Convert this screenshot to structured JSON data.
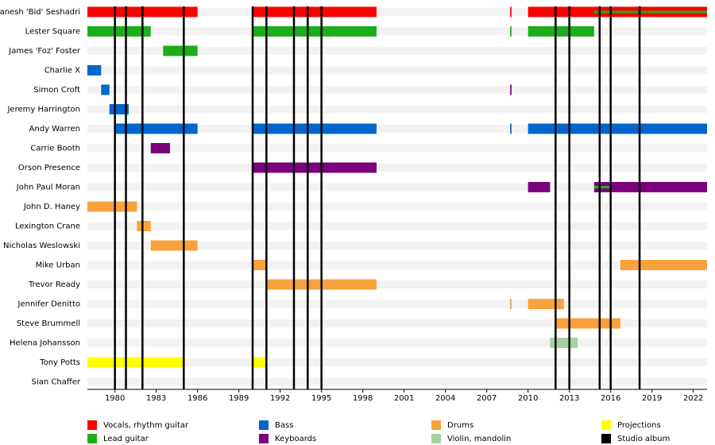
{
  "chart_data": {
    "type": "timeline",
    "categories": [
      "Ganesh 'Bid' Seshadri",
      "Lester Square",
      "James 'Foz' Foster",
      "Charlie X",
      "Simon Croft",
      "Jeremy Harrington",
      "Andy Warren",
      "Carrie Booth",
      "Orson Presence",
      "John Paul Moran",
      "John D. Haney",
      "Lexington Crane",
      "Nicholas Weslowski",
      "Mike Urban",
      "Trevor Ready",
      "Jennifer Denitto",
      "Steve Brummell",
      "Helena Johansson",
      "Tony Potts",
      "Sian Chaffer"
    ],
    "xlim": [
      1978,
      2023
    ],
    "xticks": [
      1980,
      1983,
      1986,
      1989,
      1992,
      1995,
      1998,
      2001,
      2004,
      2007,
      2010,
      2013,
      2016,
      2019,
      2022
    ],
    "series": [
      {
        "name": "Vocals, rhythm guitar",
        "color": "#ff0000",
        "values": [
          [
            [
              1978,
              1986
            ],
            [
              1990,
              1999
            ],
            [
              2008.7,
              2008.8
            ],
            [
              2010,
              2023
            ]
          ],
          null,
          null,
          null,
          null,
          null,
          null,
          null,
          null,
          null,
          null,
          null,
          null,
          null,
          null,
          null,
          null,
          null,
          null,
          null
        ]
      },
      {
        "name": "Lead guitar",
        "color": "#1aaf1a",
        "values": [
          [
            [
              2014.8,
              2023
            ]
          ],
          [
            [
              1978,
              1982.6
            ],
            [
              1990,
              1999
            ],
            [
              2008.7,
              2008.8
            ],
            [
              2010,
              2014.8
            ]
          ],
          [
            [
              1983.5,
              1986
            ]
          ],
          null,
          null,
          null,
          null,
          null,
          null,
          [
            [
              2014.8,
              2016
            ]
          ],
          null,
          null,
          null,
          null,
          null,
          null,
          null,
          null,
          null,
          null
        ]
      },
      {
        "name": "Bass",
        "color": "#0066cc",
        "values": [
          null,
          null,
          null,
          [
            [
              1978,
              1979
            ]
          ],
          [
            [
              1979,
              1979.6
            ]
          ],
          [
            [
              1979.6,
              1981
            ]
          ],
          [
            [
              1980,
              1986
            ],
            [
              1990,
              1999
            ],
            [
              2008.7,
              2008.8
            ],
            [
              2010,
              2023
            ]
          ],
          null,
          null,
          null,
          null,
          null,
          null,
          null,
          null,
          null,
          null,
          null,
          null,
          null
        ]
      },
      {
        "name": "Keyboards",
        "color": "#7b007b",
        "values": [
          null,
          null,
          null,
          null,
          [
            [
              2008.7,
              2008.8
            ]
          ],
          null,
          null,
          [
            [
              1982.6,
              1984
            ]
          ],
          [
            [
              1990,
              1999
            ]
          ],
          [
            [
              2010,
              2011.6
            ],
            [
              2014.8,
              2023
            ]
          ],
          null,
          null,
          null,
          null,
          null,
          null,
          null,
          null,
          null,
          null
        ]
      },
      {
        "name": "Drums",
        "color": "#f9a23c",
        "values": [
          null,
          null,
          null,
          null,
          null,
          null,
          null,
          null,
          null,
          null,
          [
            [
              1978,
              1981.6
            ]
          ],
          [
            [
              1981.6,
              1982.6
            ]
          ],
          [
            [
              1982.6,
              1986
            ]
          ],
          [
            [
              1990,
              1991
            ],
            [
              2016.7,
              2023
            ]
          ],
          [
            [
              1991,
              1999
            ]
          ],
          [
            [
              2008.7,
              2008.8
            ],
            [
              2010,
              2012.6
            ]
          ],
          [
            [
              2012,
              2016.7
            ]
          ],
          null,
          null,
          null
        ]
      },
      {
        "name": "Violin, mandolin",
        "color": "#a3d1a3",
        "values": [
          null,
          null,
          null,
          null,
          null,
          null,
          null,
          null,
          null,
          null,
          null,
          null,
          null,
          null,
          null,
          null,
          null,
          [
            [
              2011.6,
              2013.6
            ]
          ],
          null,
          null
        ]
      },
      {
        "name": "Projections",
        "color": "#ffff00",
        "values": [
          null,
          null,
          null,
          null,
          null,
          null,
          null,
          null,
          null,
          null,
          null,
          null,
          null,
          null,
          null,
          null,
          null,
          null,
          [
            [
              1978,
              1985
            ],
            [
              1990,
              1991
            ]
          ],
          null
        ]
      }
    ],
    "albums": {
      "name": "Studio album",
      "color": "#000000",
      "x": [
        1980,
        1980.8,
        1982,
        1985,
        1990,
        1991,
        1993,
        1994,
        1995,
        2012,
        2013,
        2015.2,
        2016,
        2018.1
      ]
    }
  }
}
